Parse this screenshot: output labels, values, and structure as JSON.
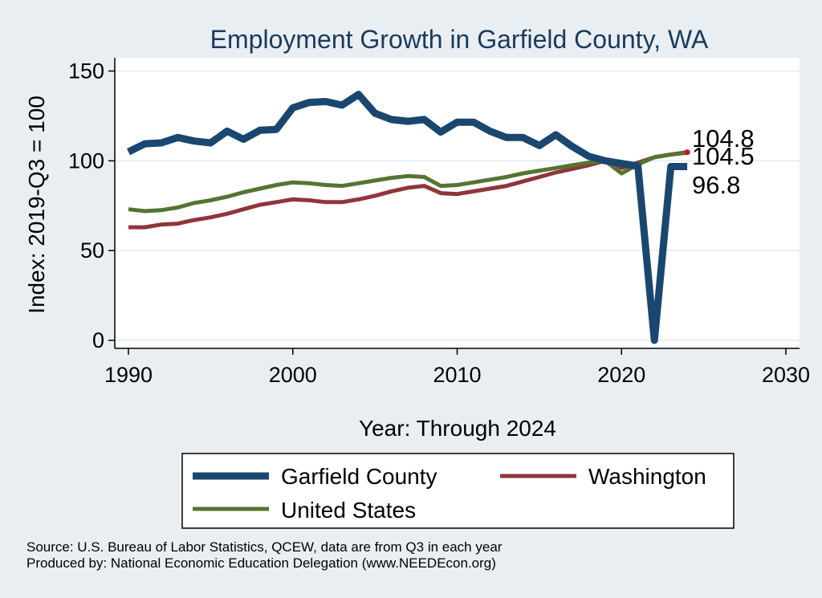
{
  "chart_data": {
    "type": "line",
    "title": "Employment Growth in Garfield County, WA",
    "xlabel": "Year: Through 2024",
    "ylabel": "Index: 2019-Q3 = 100",
    "xlim": [
      1990,
      2030
    ],
    "ylim": [
      0,
      150
    ],
    "x_ticks": [
      1990,
      2000,
      2010,
      2020,
      2030
    ],
    "y_ticks": [
      0,
      50,
      100,
      150
    ],
    "grid": true,
    "x": [
      1990,
      1991,
      1992,
      1993,
      1994,
      1995,
      1996,
      1997,
      1998,
      1999,
      2000,
      2001,
      2002,
      2003,
      2004,
      2005,
      2006,
      2007,
      2008,
      2009,
      2010,
      2011,
      2012,
      2013,
      2014,
      2015,
      2016,
      2017,
      2018,
      2019,
      2020,
      2021,
      2022,
      2023,
      2024
    ],
    "series": [
      {
        "name": "Garfield  County",
        "color": "#1a476f",
        "values": [
          105,
          109.5,
          110,
          113,
          111,
          110,
          116.5,
          112,
          117,
          117.5,
          129.5,
          132.5,
          133,
          131,
          137,
          126.5,
          123,
          122,
          123,
          116,
          121.5,
          121.5,
          116.5,
          113,
          113,
          108.5,
          114.5,
          108,
          102.5,
          100,
          98.5,
          97,
          0,
          96.8,
          96.8
        ]
      },
      {
        "name": "Washington",
        "color": "#90353b",
        "values": [
          63,
          63,
          64.5,
          65,
          67,
          68.5,
          70.5,
          73,
          75.5,
          77,
          78.5,
          78,
          77,
          77,
          78.5,
          80.5,
          83,
          85,
          86,
          82,
          81.5,
          83,
          84.5,
          86,
          88.5,
          91,
          93.5,
          95.5,
          97.5,
          100,
          96,
          99,
          102,
          103.5,
          104.8
        ]
      },
      {
        "name": "United States",
        "color": "#55752f",
        "values": [
          73,
          72,
          72.5,
          74,
          76.5,
          78,
          80,
          82.5,
          84.5,
          86.5,
          88,
          87.5,
          86.5,
          86,
          87.5,
          89,
          90.5,
          91.5,
          91,
          86,
          86.5,
          88,
          89.5,
          91,
          93,
          94.5,
          96,
          97.5,
          99,
          100,
          93,
          98,
          102,
          103.5,
          104.5
        ]
      }
    ],
    "end_labels": [
      "104.8",
      "104.5",
      "96.8"
    ],
    "legend": {
      "position": "bottom",
      "entries": [
        "Garfield  County",
        "Washington",
        "United States"
      ]
    },
    "source_lines": [
      "Source: U.S. Bureau of Labor Statistics, QCEW, data are from Q3 in each year",
      "Produced by: National Economic Education Delegation (www.NEEDEcon.org)"
    ]
  }
}
